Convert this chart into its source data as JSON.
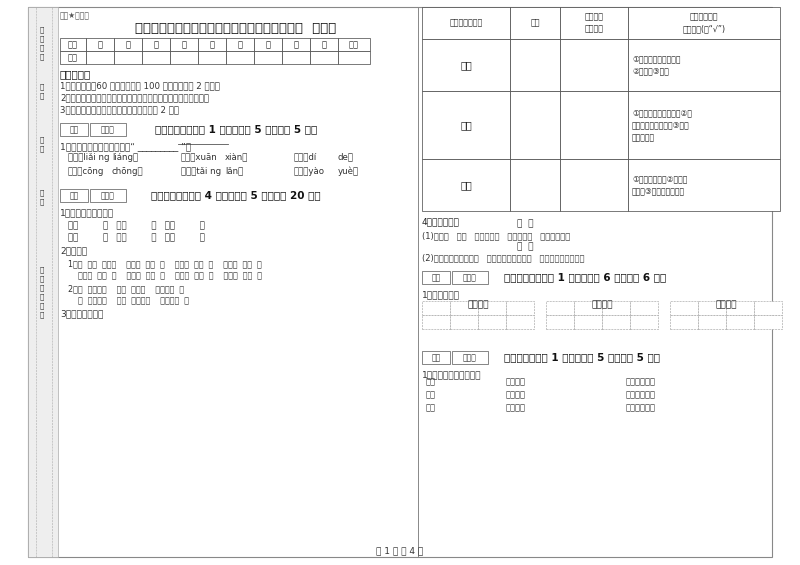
{
  "bg_color": "#ffffff",
  "title": "长沙市实验小学二年级语文下学期期中考试试题  含答案",
  "secret_text": "绝密★启用前",
  "score_headers": [
    "题号",
    "一",
    "二",
    "三",
    "四",
    "五",
    "六",
    "七",
    "八",
    "九",
    "总分"
  ],
  "score_row2": [
    "得分",
    "",
    "",
    "",
    "",
    "",
    "",
    "",
    "",
    "",
    ""
  ],
  "exam_notes_title": "考试须知：",
  "exam_notes": [
    "1、考试时间：60 分钟，满分为 100 分（含卷面分 2 分）。",
    "2、请首先按要求在试卷的指定位置填写您的姓名、班级、学号。",
    "3、不要在试卷上乱写乱画，卷面不整洁才 2 分。"
  ],
  "section1_header": "一、拼音部分（共 1 大题，每题 5 分，共计 5 分）",
  "section1_q1": "1、在加点字的正确读音下打“ _________ ”。",
  "section1_row1": [
    "商量（liǎi ng",
    "liáng）",
    "绚丽（xuān",
    "xiàn）",
    "的确（dí",
    "de）"
  ],
  "section1_row2": [
    "葱蜈（cōng",
    "chōng）",
    "坦克（tǎi ng",
    "lǎn）",
    "火药（yào",
    "yuè）"
  ],
  "section2_header": "二、基础知识（共 4 大题，每题 5 分，共计 20 分）",
  "section2_q1": "1、比一比，组词语。",
  "section2_words_row1": "扯（         ）   功（         ）   雄（         ）",
  "section2_words_row2": "粉（         ）   助（         ）   横（         ）",
  "section2_q2": "2、填空。",
  "section2_fill1_row1": "1、（  ）（  ）好问    勤奋（  ）（  ）    博采（  ）（  ）    万众（  ）（  ）",
  "section2_fill1_row2": "    拔苗（  ）（  ）    守株（  ）（  ）    众志（  ）（  ）    排山（  ）（  ）",
  "section2_fill2_row1": "2、（  ）的珍珠    一（  ）湖翠    精美的（  ）",
  "section2_fill2_row2": "    （  ）的孩子    一（  ）大镜子    娩绻的（  ）",
  "section2_q3": "3、我会查字典。",
  "rt_col1": "需要查的加点字",
  "rt_col2": "部首",
  "rt_col3": "除部首外\n还有几画",
  "rt_col4": "给加点字选择\n正确解释(打“√”)",
  "rt_row1_word": "疆导",
  "rt_row1_ans": "①清除阻塞，使界通；\n②分散；③稀。",
  "rt_row2_word": "敬爱",
  "rt_row2_ans": "①态度严谨而有礼貌；②尊\n重；有礼貌地对待；③有礼\n貌地献上。",
  "rt_row3_word": "健康",
  "rt_row3_ans": "①安定，安乐；②富裕，\n丰盛；③身体健壮无病。",
  "section2_q4": "4、选字填空。",
  "q4_sub1": "歌  导",
  "q4_line1": "(1)我的（   ）（   ）喜欢唱（   ），她的（   ）声真好听！",
  "q4_sub2": "处  外",
  "q4_line2": "(2)一到周六，我就到（   ）走走看看，发现（   ）面的世界真好玩！",
  "section3_header": "三、识字辨字（共 1 大题，每题 6 分，共计 6 分）",
  "section3_q1": "1、抄写词语。",
  "section3_words": [
    "春回大地",
    "万紫千红",
    "春暖花开"
  ],
  "section4_header": "四、连一连（共 1 大题，每题 5 分，共计 5 分）",
  "section4_q1": "1、阅读拾贝，我会连。",
  "section4_lines": [
    [
      "小草",
      "一朵两朵",
      "像春天的眉毛"
    ],
    [
      "野花",
      "探出头来",
      "像春天的眼睛"
    ],
    [
      "树木",
      "吐出娩芽",
      "像春天的琴声"
    ]
  ],
  "left_margin_texts": [
    "准考证号",
    "姓名",
    "班级",
    "学校",
    "乡镇（街道）"
  ],
  "bottom_text": "第 1 页 共 4 页",
  "score_box_label": "得分",
  "reviewer_label": "评卷人"
}
